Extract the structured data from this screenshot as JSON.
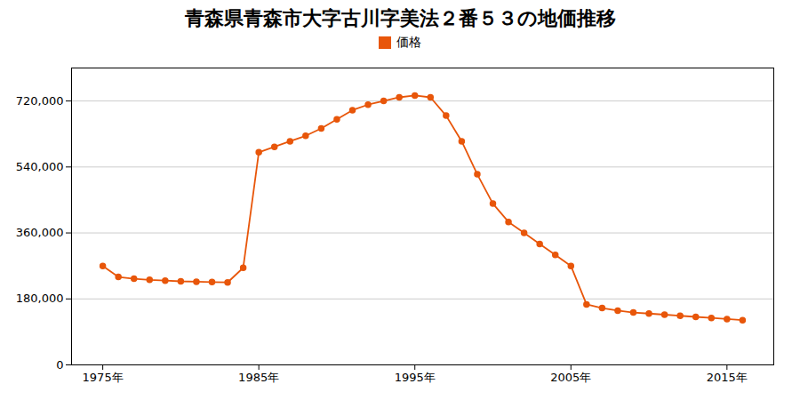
{
  "chart_data": {
    "type": "line",
    "title": "青森県青森市大字古川字美法２番５３の地価推移",
    "x": [
      1975,
      1976,
      1977,
      1978,
      1979,
      1980,
      1981,
      1982,
      1983,
      1984,
      1985,
      1986,
      1987,
      1988,
      1989,
      1990,
      1991,
      1992,
      1993,
      1994,
      1995,
      1996,
      1997,
      1998,
      1999,
      2000,
      2001,
      2002,
      2003,
      2004,
      2005,
      2006,
      2007,
      2008,
      2009,
      2010,
      2011,
      2012,
      2013,
      2014,
      2015,
      2016
    ],
    "series": [
      {
        "name": "価格",
        "color": "#e8560a",
        "marker": "circle",
        "values": [
          270000,
          240000,
          235000,
          232000,
          230000,
          228000,
          227000,
          226000,
          225000,
          265000,
          580000,
          595000,
          610000,
          625000,
          645000,
          670000,
          695000,
          710000,
          720000,
          730000,
          735000,
          730000,
          680000,
          610000,
          520000,
          440000,
          390000,
          360000,
          330000,
          300000,
          270000,
          165000,
          155000,
          148000,
          143000,
          140000,
          137000,
          134000,
          131000,
          128000,
          125000,
          122000
        ]
      }
    ],
    "xlim": [
      1973,
      2018
    ],
    "xticks": [
      {
        "value": 1975,
        "label": "1975年"
      },
      {
        "value": 1985,
        "label": "1985年"
      },
      {
        "value": 1995,
        "label": "1995年"
      },
      {
        "value": 2005,
        "label": "2005年"
      },
      {
        "value": 2015,
        "label": "2015年"
      }
    ],
    "ylim": [
      0,
      810000
    ],
    "yticks": [
      0,
      {
        "value": 180000,
        "label": "180,000"
      },
      {
        "value": 360000,
        "label": "360,000"
      },
      {
        "value": 540000,
        "label": "540,000"
      },
      {
        "value": 720000,
        "label": "720,000"
      }
    ],
    "grid": true,
    "legend": "top"
  }
}
